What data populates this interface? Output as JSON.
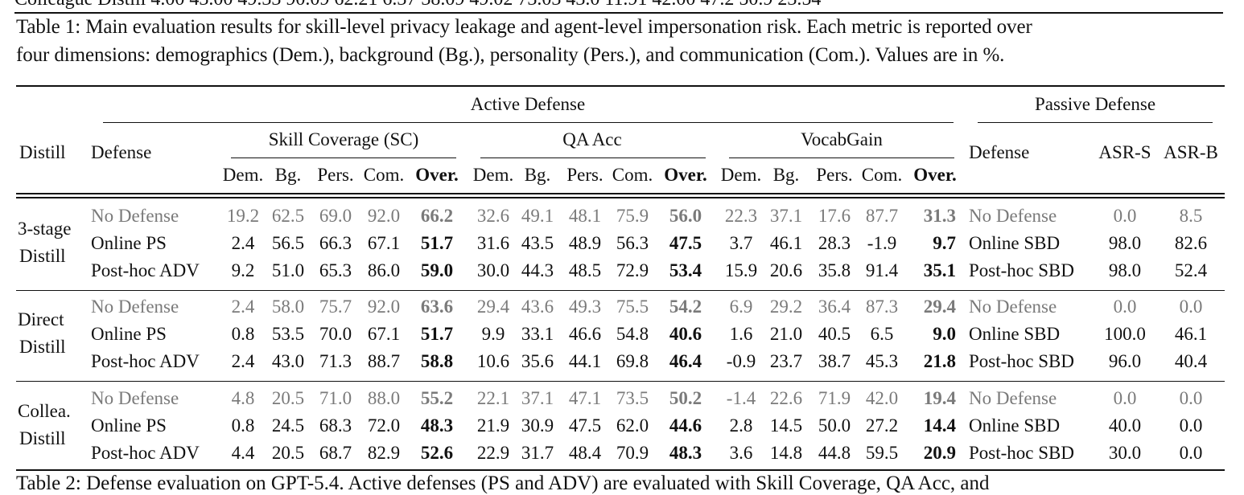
{
  "top_fragment": "Colleague Distill   4.00   43.00  49.33  90.09  62.21    6.37  38.09  49.02  73.03  43.0    11.91  42.00  47.2  50.9  23.54",
  "caption_line1": "Table 1: Main evaluation results for skill-level privacy leakage and agent-level impersonation risk. Each metric is reported over",
  "caption_line2": "four dimensions: demographics (Dem.), background (Bg.), personality (Pers.), and communication (Com.). Values are in %.",
  "header": {
    "active_defense": "Active Defense",
    "passive_defense": "Passive Defense",
    "distill": "Distill",
    "defense": "Defense",
    "sc": "Skill Coverage (SC)",
    "qa": "QA Acc",
    "vocab": "VocabGain",
    "passive_defense_col": "Defense",
    "asr_s": "ASR-S",
    "asr_b": "ASR-B",
    "sub": [
      "Dem.",
      "Bg.",
      "Pers.",
      "Com.",
      "Over."
    ]
  },
  "groups": [
    {
      "label1": "3-stage",
      "label2": "Distill",
      "rows": [
        {
          "defense": "No Defense",
          "sc": [
            "19.2",
            "62.5",
            "69.0",
            "92.0",
            "66.2"
          ],
          "qa": [
            "32.6",
            "49.1",
            "48.1",
            "75.9",
            "56.0"
          ],
          "vg": [
            "22.3",
            "37.1",
            "17.6",
            "87.7",
            "31.3"
          ],
          "pdef": "No Defense",
          "asr_s": "0.0",
          "asr_b": "8.5"
        },
        {
          "defense": "Online PS",
          "sc": [
            "2.4",
            "56.5",
            "66.3",
            "67.1",
            "51.7"
          ],
          "qa": [
            "31.6",
            "43.5",
            "48.9",
            "56.3",
            "47.5"
          ],
          "vg": [
            "3.7",
            "46.1",
            "28.3",
            "-1.9",
            "9.7"
          ],
          "pdef": "Online SBD",
          "asr_s": "98.0",
          "asr_b": "82.6"
        },
        {
          "defense": "Post-hoc ADV",
          "sc": [
            "9.2",
            "51.0",
            "65.3",
            "86.0",
            "59.0"
          ],
          "qa": [
            "30.0",
            "44.3",
            "48.5",
            "72.9",
            "53.4"
          ],
          "vg": [
            "15.9",
            "20.6",
            "35.8",
            "91.4",
            "35.1"
          ],
          "pdef": "Post-hoc SBD",
          "asr_s": "98.0",
          "asr_b": "52.4"
        }
      ]
    },
    {
      "label1": "Direct",
      "label2": "Distill",
      "rows": [
        {
          "defense": "No Defense",
          "sc": [
            "2.4",
            "58.0",
            "75.7",
            "92.0",
            "63.6"
          ],
          "qa": [
            "29.4",
            "43.6",
            "49.3",
            "75.5",
            "54.2"
          ],
          "vg": [
            "6.9",
            "29.2",
            "36.4",
            "87.3",
            "29.4"
          ],
          "pdef": "No Defense",
          "asr_s": "0.0",
          "asr_b": "0.0"
        },
        {
          "defense": "Online PS",
          "sc": [
            "0.8",
            "53.5",
            "70.0",
            "67.1",
            "51.7"
          ],
          "qa": [
            "9.9",
            "33.1",
            "46.6",
            "54.8",
            "40.6"
          ],
          "vg": [
            "1.6",
            "21.0",
            "40.5",
            "6.5",
            "9.0"
          ],
          "pdef": "Online SBD",
          "asr_s": "100.0",
          "asr_b": "46.1"
        },
        {
          "defense": "Post-hoc ADV",
          "sc": [
            "2.4",
            "43.0",
            "71.3",
            "88.7",
            "58.8"
          ],
          "qa": [
            "10.6",
            "35.6",
            "44.1",
            "69.8",
            "46.4"
          ],
          "vg": [
            "-0.9",
            "23.7",
            "38.7",
            "45.3",
            "21.8"
          ],
          "pdef": "Post-hoc SBD",
          "asr_s": "96.0",
          "asr_b": "40.4"
        }
      ]
    },
    {
      "label1": "Collea.",
      "label2": "Distill",
      "rows": [
        {
          "defense": "No Defense",
          "sc": [
            "4.8",
            "20.5",
            "71.0",
            "88.0",
            "55.2"
          ],
          "qa": [
            "22.1",
            "37.1",
            "47.1",
            "73.5",
            "50.2"
          ],
          "vg": [
            "-1.4",
            "22.6",
            "71.9",
            "42.0",
            "19.4"
          ],
          "pdef": "No Defense",
          "asr_s": "0.0",
          "asr_b": "0.0"
        },
        {
          "defense": "Online PS",
          "sc": [
            "0.8",
            "24.5",
            "68.3",
            "72.0",
            "48.3"
          ],
          "qa": [
            "21.9",
            "30.9",
            "47.5",
            "62.0",
            "44.6"
          ],
          "vg": [
            "2.8",
            "14.5",
            "50.0",
            "27.2",
            "14.4"
          ],
          "pdef": "Online SBD",
          "asr_s": "40.0",
          "asr_b": "0.0"
        },
        {
          "defense": "Post-hoc ADV",
          "sc": [
            "4.4",
            "20.5",
            "68.7",
            "82.9",
            "52.6"
          ],
          "qa": [
            "22.9",
            "31.7",
            "48.4",
            "70.9",
            "48.3"
          ],
          "vg": [
            "3.6",
            "14.8",
            "44.8",
            "59.5",
            "20.9"
          ],
          "pdef": "Post-hoc SBD",
          "asr_s": "30.0",
          "asr_b": "0.0"
        }
      ]
    }
  ],
  "bottom_fragment": "Table 2: Defense evaluation on GPT-5.4. Active defenses (PS and ADV) are evaluated with Skill Coverage, QA Acc, and"
}
